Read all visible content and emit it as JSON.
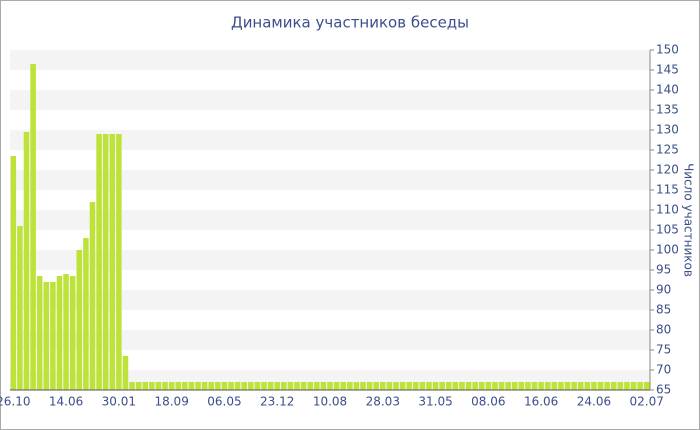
{
  "chart_data": {
    "type": "bar",
    "title": "Динамика участников беседы",
    "y_axis_label": "Число участников",
    "categories": [
      "26.10",
      null,
      null,
      null,
      null,
      null,
      null,
      null,
      "14.06",
      null,
      null,
      null,
      null,
      null,
      null,
      null,
      "30.01",
      null,
      null,
      null,
      null,
      null,
      null,
      null,
      "18.09",
      null,
      null,
      null,
      null,
      null,
      null,
      null,
      "06.05",
      null,
      null,
      null,
      null,
      null,
      null,
      null,
      "23.12",
      null,
      null,
      null,
      null,
      null,
      null,
      null,
      "10.08",
      null,
      null,
      null,
      null,
      null,
      null,
      null,
      "28.03",
      null,
      null,
      null,
      null,
      null,
      null,
      null,
      "31.05",
      null,
      null,
      null,
      null,
      null,
      null,
      null,
      "08.06",
      null,
      null,
      null,
      null,
      null,
      null,
      null,
      "16.06",
      null,
      null,
      null,
      null,
      null,
      null,
      null,
      "24.06",
      null,
      null,
      null,
      null,
      null,
      null,
      null,
      "02.07"
    ],
    "values": [
      123.5,
      106,
      129.5,
      146.5,
      93.5,
      92,
      92,
      93.5,
      94,
      93.5,
      100,
      103,
      112,
      129,
      129,
      129,
      129,
      73.5,
      67,
      67,
      67,
      67,
      67,
      67,
      67,
      67,
      67,
      67,
      67,
      67,
      67,
      67,
      67,
      67,
      67,
      67,
      67,
      67,
      67,
      67,
      67,
      67,
      67,
      67,
      67,
      67,
      67,
      67,
      67,
      67,
      67,
      67,
      67,
      67,
      67,
      67,
      67,
      67,
      67,
      67,
      67,
      67,
      67,
      67,
      67,
      67,
      67,
      67,
      67,
      67,
      67,
      67,
      67,
      67,
      67,
      67,
      67,
      67,
      67,
      67,
      67,
      67,
      67,
      67,
      67,
      67,
      67,
      67,
      67,
      67,
      67,
      67,
      67,
      67,
      67,
      67,
      67
    ],
    "color": "#bde33a",
    "ylim": [
      65,
      150
    ],
    "yticks": [
      65,
      70,
      75,
      80,
      85,
      90,
      95,
      100,
      105,
      110,
      115,
      120,
      125,
      130,
      135,
      140,
      145,
      150
    ],
    "grid": true
  }
}
